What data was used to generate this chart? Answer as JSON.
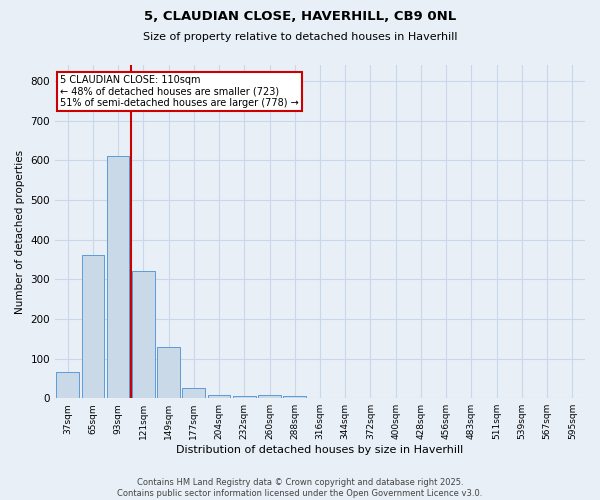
{
  "title1": "5, CLAUDIAN CLOSE, HAVERHILL, CB9 0NL",
  "title2": "Size of property relative to detached houses in Haverhill",
  "xlabel": "Distribution of detached houses by size in Haverhill",
  "ylabel": "Number of detached properties",
  "categories": [
    "37sqm",
    "65sqm",
    "93sqm",
    "121sqm",
    "149sqm",
    "177sqm",
    "204sqm",
    "232sqm",
    "260sqm",
    "288sqm",
    "316sqm",
    "344sqm",
    "372sqm",
    "400sqm",
    "428sqm",
    "456sqm",
    "483sqm",
    "511sqm",
    "539sqm",
    "567sqm",
    "595sqm"
  ],
  "values": [
    65,
    360,
    610,
    320,
    130,
    25,
    8,
    5,
    8,
    5,
    0,
    0,
    0,
    0,
    0,
    0,
    0,
    0,
    0,
    0,
    0
  ],
  "bar_color": "#c9d9e8",
  "bar_edge_color": "#5b9bd5",
  "grid_color": "#c8d8e8",
  "background_color": "#e8eff7",
  "annotation_text": "5 CLAUDIAN CLOSE: 110sqm\n← 48% of detached houses are smaller (723)\n51% of semi-detached houses are larger (778) →",
  "annotation_box_color": "#ffffff",
  "annotation_box_edge": "#cc0000",
  "red_line_color": "#cc0000",
  "footer_line1": "Contains HM Land Registry data © Crown copyright and database right 2025.",
  "footer_line2": "Contains public sector information licensed under the Open Government Licence v3.0.",
  "ylim": [
    0,
    840
  ],
  "yticks": [
    0,
    100,
    200,
    300,
    400,
    500,
    600,
    700,
    800
  ]
}
